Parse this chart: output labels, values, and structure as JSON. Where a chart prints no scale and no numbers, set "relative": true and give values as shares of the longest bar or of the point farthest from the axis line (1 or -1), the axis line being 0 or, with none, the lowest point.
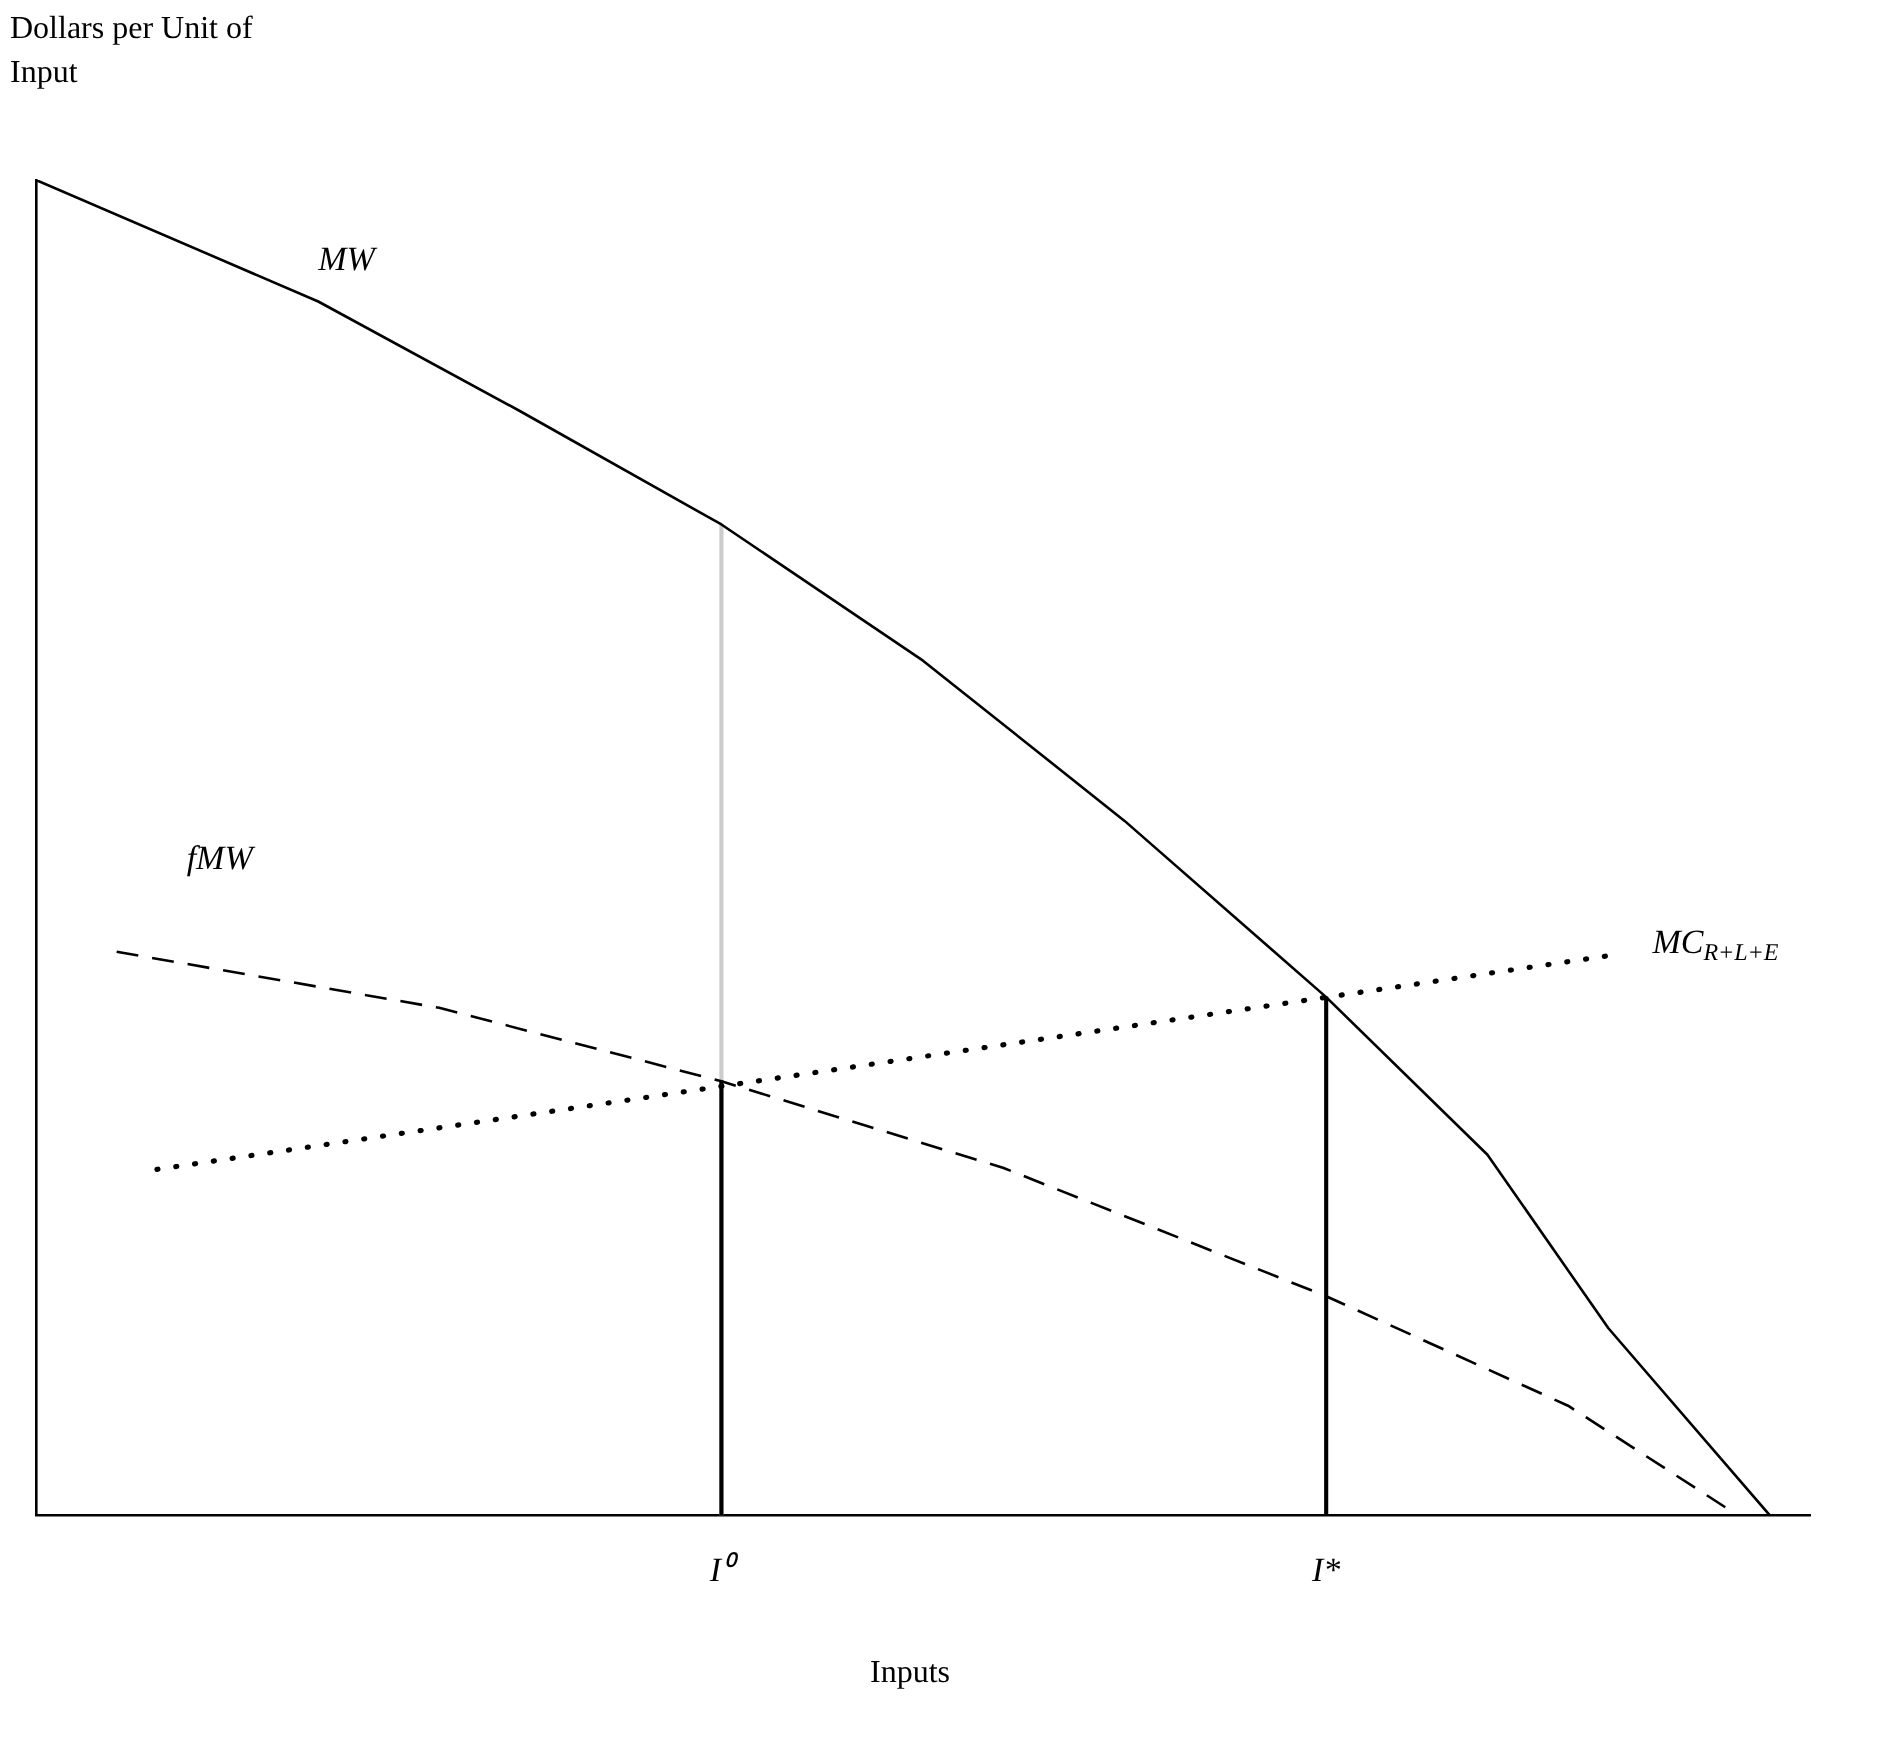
{
  "chart_data": {
    "type": "line",
    "xlabel": "Inputs",
    "ylabel": "Dollars per Unit of Input",
    "relative": true,
    "grid": false,
    "legend": false,
    "tick_labels": "x",
    "marker": "none",
    "categories": [
      null,
      null,
      null,
      null,
      null,
      null,
      null,
      null,
      null,
      null,
      null,
      null,
      null,
      null,
      null,
      null,
      null,
      "I⁰",
      null,
      null,
      null,
      null,
      null,
      null,
      null,
      null,
      null,
      null,
      null,
      null,
      null,
      null,
      "I*",
      null,
      null,
      null,
      null,
      null,
      null,
      null,
      null,
      null,
      null,
      null,
      null
    ],
    "series": [
      {
        "name": "MW",
        "color": "#000000",
        "line_style": "solid",
        "values": [
          1,
          null,
          null,
          null,
          null,
          null,
          null,
          0.909,
          null,
          null,
          null,
          null,
          0.827,
          null,
          null,
          null,
          null,
          0.742,
          null,
          null,
          null,
          null,
          0.64,
          null,
          null,
          null,
          null,
          0.52,
          null,
          null,
          null,
          null,
          0.388,
          null,
          null,
          null,
          0.27,
          null,
          null,
          0.14,
          null,
          null,
          null,
          0,
          null
        ]
      },
      {
        "name": "fMW",
        "color": "#000000",
        "line_style": "dashed",
        "values": [
          null,
          null,
          0.422,
          null,
          null,
          null,
          null,
          null,
          null,
          null,
          0.38,
          null,
          null,
          null,
          null,
          null,
          null,
          0.325,
          null,
          null,
          null,
          null,
          null,
          null,
          0.26,
          null,
          null,
          null,
          null,
          null,
          null,
          null,
          0.164,
          null,
          null,
          null,
          null,
          null,
          0.082,
          null,
          null,
          null,
          0.004,
          null,
          null
        ]
      },
      {
        "name": "MC$_{R+L+E}$",
        "color": "#000000",
        "line_style": "dotted",
        "values": [
          null,
          null,
          null,
          0.259,
          null,
          null,
          null,
          null,
          null,
          null,
          null,
          null,
          null,
          null,
          null,
          null,
          null,
          null,
          null,
          null,
          null,
          null,
          null,
          null,
          null,
          null,
          null,
          null,
          null,
          null,
          null,
          null,
          null,
          null,
          null,
          null,
          null,
          null,
          null,
          0.419,
          null,
          null,
          null,
          null,
          null
        ]
      },
      {
        "type": "bar",
        "color": "#000000",
        "values": [
          null,
          null,
          null,
          null,
          null,
          null,
          null,
          null,
          null,
          null,
          null,
          null,
          null,
          null,
          null,
          null,
          null,
          0.325,
          null,
          null,
          null,
          null,
          null,
          null,
          null,
          null,
          null,
          null,
          null,
          null,
          null,
          null,
          0.388,
          null,
          null,
          null,
          null,
          null,
          null,
          null,
          null,
          null,
          null,
          null,
          null
        ]
      },
      {
        "type": "bar",
        "color": "#cccccc",
        "values": [
          null,
          null,
          null,
          null,
          null,
          null,
          null,
          null,
          null,
          null,
          null,
          null,
          null,
          null,
          null,
          null,
          null,
          0.742,
          null,
          null,
          null,
          null,
          null,
          null,
          null,
          null,
          null,
          null,
          null,
          null,
          null,
          null,
          null,
          null,
          null,
          null,
          null,
          null,
          null,
          null,
          null,
          null,
          null,
          null,
          null
        ]
      }
    ]
  }
}
